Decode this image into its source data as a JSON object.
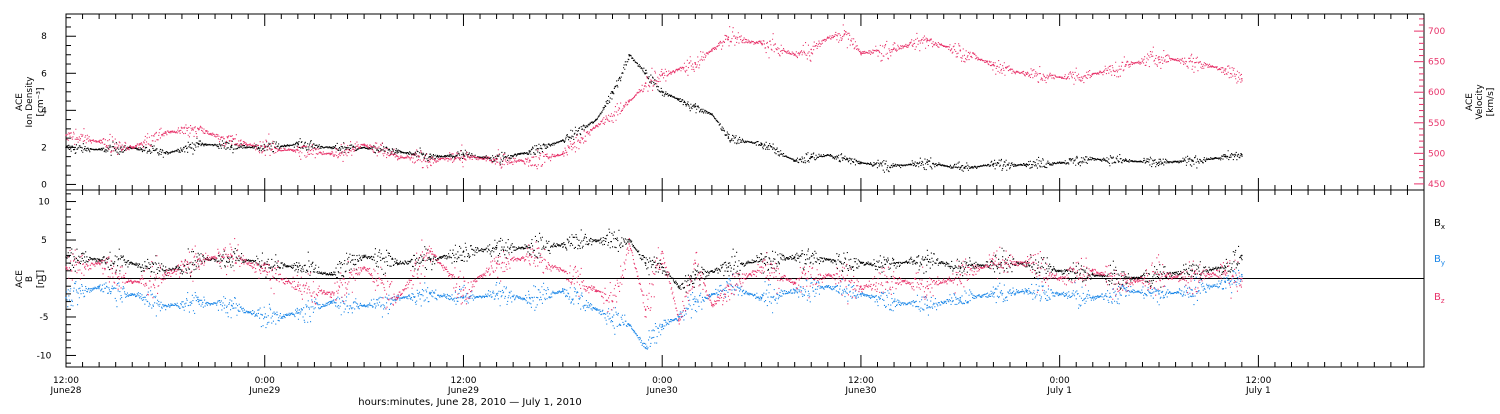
{
  "xaxis": {
    "title": "hours:minutes, June 28, 2010 — July  1, 2010",
    "range_hours": [
      0,
      82
    ],
    "major_ticks": [
      {
        "hour": 0,
        "time": "12:00",
        "date": "June28"
      },
      {
        "hour": 12,
        "time": "0:00",
        "date": "June29"
      },
      {
        "hour": 24,
        "time": "12:00",
        "date": "June29"
      },
      {
        "hour": 36,
        "time": "0:00",
        "date": "June30"
      },
      {
        "hour": 48,
        "time": "12:00",
        "date": "June30"
      },
      {
        "hour": 60,
        "time": "0:00",
        "date": "July 1"
      },
      {
        "hour": 72,
        "time": "12:00",
        "date": "July 1"
      }
    ]
  },
  "chart_data": [
    {
      "type": "scatter",
      "panel": "top",
      "left_axis": {
        "label_lines": [
          "ACE",
          "Ion Density",
          "[cm⁻³]"
        ],
        "ylim": [
          -0.3,
          9.2
        ],
        "ticks": [
          0,
          2,
          4,
          6,
          8
        ],
        "color": "#000000"
      },
      "right_axis": {
        "label_lines": [
          "ACE",
          "Velocity",
          "[km/s]"
        ],
        "ylim": [
          440,
          728
        ],
        "ticks": [
          450,
          500,
          550,
          600,
          650,
          700
        ],
        "color": "#e8336a"
      },
      "series": [
        {
          "axis": "left",
          "color": "#000000",
          "points": [
            [
              0,
              2.0
            ],
            [
              2,
              1.9
            ],
            [
              4,
              2.0
            ],
            [
              6,
              1.7
            ],
            [
              8,
              2.2
            ],
            [
              10,
              2.1
            ],
            [
              12,
              2.0
            ],
            [
              14,
              2.2
            ],
            [
              16,
              2.0
            ],
            [
              18,
              2.0
            ],
            [
              20,
              1.8
            ],
            [
              22,
              1.5
            ],
            [
              24,
              1.6
            ],
            [
              26,
              1.4
            ],
            [
              28,
              1.8
            ],
            [
              30,
              2.4
            ],
            [
              32,
              3.5
            ],
            [
              33,
              5.0
            ],
            [
              34,
              7.0
            ],
            [
              35,
              6.0
            ],
            [
              36,
              5.0
            ],
            [
              37,
              4.6
            ],
            [
              38,
              4.2
            ],
            [
              39,
              3.8
            ],
            [
              40,
              2.5
            ],
            [
              42,
              2.2
            ],
            [
              44,
              1.3
            ],
            [
              45,
              1.5
            ],
            [
              46,
              1.6
            ],
            [
              48,
              1.2
            ],
            [
              50,
              1.0
            ],
            [
              52,
              1.2
            ],
            [
              54,
              0.9
            ],
            [
              56,
              1.1
            ],
            [
              58,
              1.1
            ],
            [
              60,
              1.2
            ],
            [
              62,
              1.4
            ],
            [
              64,
              1.3
            ],
            [
              66,
              1.2
            ],
            [
              68,
              1.3
            ],
            [
              70,
              1.5
            ],
            [
              71,
              1.6
            ]
          ]
        },
        {
          "axis": "right",
          "color": "#e8336a",
          "points": [
            [
              0,
              530
            ],
            [
              2,
              520
            ],
            [
              4,
              510
            ],
            [
              6,
              535
            ],
            [
              8,
              540
            ],
            [
              10,
              520
            ],
            [
              12,
              510
            ],
            [
              14,
              505
            ],
            [
              16,
              500
            ],
            [
              18,
              515
            ],
            [
              20,
              495
            ],
            [
              22,
              490
            ],
            [
              24,
              495
            ],
            [
              26,
              490
            ],
            [
              28,
              488
            ],
            [
              30,
              500
            ],
            [
              32,
              545
            ],
            [
              34,
              585
            ],
            [
              35,
              615
            ],
            [
              36,
              628
            ],
            [
              37,
              638
            ],
            [
              38,
              648
            ],
            [
              39,
              670
            ],
            [
              40,
              690
            ],
            [
              42,
              680
            ],
            [
              44,
              662
            ],
            [
              45,
              670
            ],
            [
              46,
              690
            ],
            [
              47,
              695
            ],
            [
              48,
              665
            ],
            [
              50,
              672
            ],
            [
              52,
              685
            ],
            [
              54,
              668
            ],
            [
              56,
              645
            ],
            [
              58,
              630
            ],
            [
              60,
              625
            ],
            [
              62,
              630
            ],
            [
              64,
              645
            ],
            [
              66,
              658
            ],
            [
              68,
              650
            ],
            [
              70,
              638
            ],
            [
              71,
              622
            ]
          ]
        }
      ]
    },
    {
      "type": "scatter",
      "panel": "bottom",
      "left_axis": {
        "label_lines": [
          "ACE",
          "B",
          "[nT]"
        ],
        "ylim": [
          -11.5,
          11.5
        ],
        "ticks": [
          -10,
          -5,
          0,
          5,
          10
        ],
        "color": "#000000"
      },
      "legend": {
        "placement": "right",
        "entries": [
          {
            "text": "B",
            "sub": "x",
            "color": "#000000"
          },
          {
            "text": "B",
            "sub": "y",
            "color": "#1a86e8"
          },
          {
            "text": "B",
            "sub": "z",
            "color": "#e8336a"
          }
        ]
      },
      "series": [
        {
          "name": "Bx",
          "color": "#000000",
          "points": [
            [
              0,
              2.8
            ],
            [
              2,
              2.5
            ],
            [
              4,
              2.0
            ],
            [
              6,
              1.0
            ],
            [
              8,
              2.5
            ],
            [
              10,
              2.8
            ],
            [
              12,
              2.0
            ],
            [
              14,
              1.5
            ],
            [
              16,
              0.5
            ],
            [
              18,
              3.0
            ],
            [
              20,
              2.0
            ],
            [
              22,
              2.5
            ],
            [
              24,
              3.5
            ],
            [
              26,
              4.0
            ],
            [
              28,
              4.0
            ],
            [
              30,
              4.5
            ],
            [
              32,
              5.0
            ],
            [
              34,
              5.0
            ],
            [
              35,
              2.0
            ],
            [
              36,
              1.5
            ],
            [
              37,
              -1.0
            ],
            [
              38,
              0.5
            ],
            [
              39,
              1.0
            ],
            [
              40,
              1.5
            ],
            [
              42,
              2.5
            ],
            [
              44,
              2.8
            ],
            [
              46,
              2.5
            ],
            [
              48,
              2.0
            ],
            [
              50,
              2.0
            ],
            [
              52,
              2.5
            ],
            [
              54,
              1.5
            ],
            [
              56,
              2.0
            ],
            [
              58,
              2.0
            ],
            [
              60,
              1.0
            ],
            [
              62,
              0.5
            ],
            [
              64,
              0.0
            ],
            [
              66,
              0.5
            ],
            [
              68,
              1.0
            ],
            [
              70,
              1.5
            ],
            [
              71,
              3.0
            ]
          ]
        },
        {
          "name": "By",
          "color": "#1a86e8",
          "points": [
            [
              0,
              -2.5
            ],
            [
              2,
              -1.0
            ],
            [
              4,
              -2.0
            ],
            [
              6,
              -3.5
            ],
            [
              8,
              -3.0
            ],
            [
              10,
              -3.5
            ],
            [
              12,
              -5.0
            ],
            [
              14,
              -4.5
            ],
            [
              16,
              -3.0
            ],
            [
              18,
              -3.5
            ],
            [
              20,
              -2.5
            ],
            [
              22,
              -2.0
            ],
            [
              24,
              -2.5
            ],
            [
              26,
              -2.0
            ],
            [
              28,
              -2.5
            ],
            [
              30,
              -1.5
            ],
            [
              32,
              -4.0
            ],
            [
              33,
              -5.0
            ],
            [
              34,
              -6.0
            ],
            [
              35,
              -9.0
            ],
            [
              36,
              -6.0
            ],
            [
              37,
              -5.0
            ],
            [
              38,
              -3.0
            ],
            [
              39,
              -2.0
            ],
            [
              40,
              -1.0
            ],
            [
              42,
              -2.5
            ],
            [
              44,
              -1.5
            ],
            [
              46,
              -1.0
            ],
            [
              48,
              -2.0
            ],
            [
              50,
              -3.0
            ],
            [
              52,
              -3.5
            ],
            [
              54,
              -2.5
            ],
            [
              56,
              -2.0
            ],
            [
              58,
              -1.5
            ],
            [
              60,
              -2.0
            ],
            [
              62,
              -2.5
            ],
            [
              64,
              -1.5
            ],
            [
              66,
              -2.0
            ],
            [
              68,
              -1.5
            ],
            [
              70,
              -0.5
            ],
            [
              71,
              0.5
            ]
          ]
        },
        {
          "name": "Bz",
          "color": "#e8336a",
          "points": [
            [
              0,
              1.5
            ],
            [
              2,
              2.0
            ],
            [
              4,
              -0.5
            ],
            [
              6,
              0.5
            ],
            [
              8,
              2.5
            ],
            [
              10,
              3.0
            ],
            [
              12,
              1.0
            ],
            [
              14,
              -1.0
            ],
            [
              16,
              -2.0
            ],
            [
              18,
              1.5
            ],
            [
              20,
              -2.5
            ],
            [
              22,
              3.5
            ],
            [
              24,
              -1.5
            ],
            [
              26,
              2.0
            ],
            [
              28,
              3.0
            ],
            [
              30,
              1.0
            ],
            [
              32,
              -1.5
            ],
            [
              33,
              -3.0
            ],
            [
              34,
              4.5
            ],
            [
              35,
              -4.0
            ],
            [
              36,
              3.5
            ],
            [
              37,
              -5.5
            ],
            [
              38,
              2.0
            ],
            [
              39,
              -3.5
            ],
            [
              40,
              -1.0
            ],
            [
              42,
              1.5
            ],
            [
              44,
              -0.5
            ],
            [
              46,
              0.5
            ],
            [
              48,
              -1.0
            ],
            [
              50,
              0.0
            ],
            [
              52,
              -1.0
            ],
            [
              54,
              0.5
            ],
            [
              56,
              2.0
            ],
            [
              58,
              2.0
            ],
            [
              60,
              0.0
            ],
            [
              62,
              1.0
            ],
            [
              64,
              -0.5
            ],
            [
              66,
              0.5
            ],
            [
              68,
              0.0
            ],
            [
              70,
              1.0
            ],
            [
              71,
              0.0
            ]
          ]
        }
      ]
    }
  ]
}
